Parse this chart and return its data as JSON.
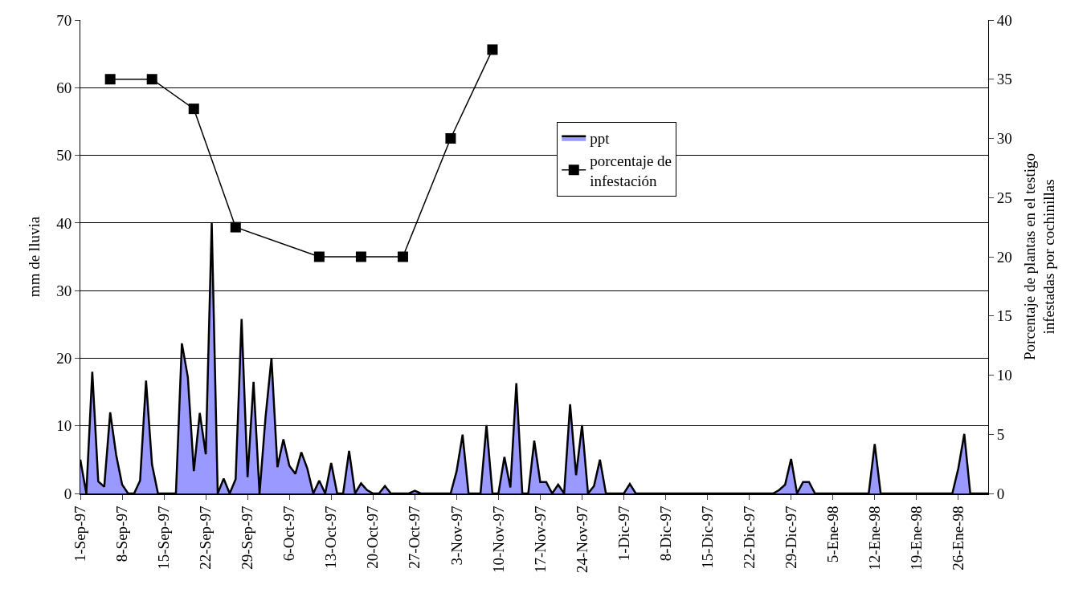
{
  "chart_data": {
    "type": "area",
    "ylabel": "mm de lluvia",
    "y2label": "Porcentaje de plantas en el testigo\ninfestadas por cochinillas",
    "xlim": [
      "1997-09-01",
      "1998-01-31"
    ],
    "xticks": [
      {
        "value": "1997-09-01",
        "label": "1-Sep-97"
      },
      {
        "value": "1997-09-08",
        "label": "8-Sep-97"
      },
      {
        "value": "1997-09-15",
        "label": "15-Sep-97"
      },
      {
        "value": "1997-09-22",
        "label": "22-Sep-97"
      },
      {
        "value": "1997-09-29",
        "label": "29-Sep-97"
      },
      {
        "value": "1997-10-06",
        "label": "6-Oct-97"
      },
      {
        "value": "1997-10-13",
        "label": "13-Oct-97"
      },
      {
        "value": "1997-10-20",
        "label": "20-Oct-97"
      },
      {
        "value": "1997-10-27",
        "label": "27-Oct-97"
      },
      {
        "value": "1997-11-03",
        "label": "3-Nov-97"
      },
      {
        "value": "1997-11-10",
        "label": "10-Nov-97"
      },
      {
        "value": "1997-11-17",
        "label": "17-Nov-97"
      },
      {
        "value": "1997-11-24",
        "label": "24-Nov-97"
      },
      {
        "value": "1997-12-01",
        "label": "1-Dic-97"
      },
      {
        "value": "1997-12-08",
        "label": "8-Dic-97"
      },
      {
        "value": "1997-12-15",
        "label": "15-Dic-97"
      },
      {
        "value": "1997-12-22",
        "label": "22-Dic-97"
      },
      {
        "value": "1997-12-29",
        "label": "29-Dic-97"
      },
      {
        "value": "1998-01-05",
        "label": "5-Ene-98"
      },
      {
        "value": "1998-01-12",
        "label": "12-Ene-98"
      },
      {
        "value": "1998-01-19",
        "label": "19-Ene-98"
      },
      {
        "value": "1998-01-26",
        "label": "26-Ene-98"
      }
    ],
    "ylim": [
      0,
      70
    ],
    "yticks": [
      0,
      10,
      20,
      30,
      40,
      50,
      60,
      70
    ],
    "y2lim": [
      0,
      40
    ],
    "y2ticks": [
      0,
      5,
      10,
      15,
      20,
      25,
      30,
      35,
      40
    ],
    "grid": "y",
    "legend": "top",
    "series": [
      {
        "name": "ppt",
        "color": "#9999ff",
        "x": [
          "1997-09-01",
          "1997-09-02",
          "1997-09-03",
          "1997-09-04",
          "1997-09-05",
          "1997-09-06",
          "1997-09-07",
          "1997-09-08",
          "1997-09-09",
          "1997-09-10",
          "1997-09-11",
          "1997-09-12",
          "1997-09-13",
          "1997-09-14",
          "1997-09-15",
          "1997-09-16",
          "1997-09-17",
          "1997-09-18",
          "1997-09-19",
          "1997-09-20",
          "1997-09-21",
          "1997-09-22",
          "1997-09-23",
          "1997-09-24",
          "1997-09-25",
          "1997-09-26",
          "1997-09-27",
          "1997-09-28",
          "1997-09-29",
          "1997-09-30",
          "1997-10-01",
          "1997-10-02",
          "1997-10-03",
          "1997-10-04",
          "1997-10-05",
          "1997-10-06",
          "1997-10-07",
          "1997-10-08",
          "1997-10-09",
          "1997-10-10",
          "1997-10-11",
          "1997-10-12",
          "1997-10-13",
          "1997-10-14",
          "1997-10-15",
          "1997-10-16",
          "1997-10-17",
          "1997-10-18",
          "1997-10-19",
          "1997-10-20",
          "1997-10-21",
          "1997-10-22",
          "1997-10-23",
          "1997-10-24",
          "1997-10-25",
          "1997-10-26",
          "1997-10-27",
          "1997-10-28",
          "1997-10-29",
          "1997-10-30",
          "1997-10-31",
          "1997-11-01",
          "1997-11-02",
          "1997-11-03",
          "1997-11-04",
          "1997-11-05",
          "1997-11-06",
          "1997-11-07",
          "1997-11-08",
          "1997-11-09",
          "1997-11-10",
          "1997-11-11",
          "1997-11-12",
          "1997-11-13",
          "1997-11-14",
          "1997-11-15",
          "1997-11-16",
          "1997-11-17",
          "1997-11-18",
          "1997-11-19",
          "1997-11-20",
          "1997-11-21",
          "1997-11-22",
          "1997-11-23",
          "1997-11-24",
          "1997-11-25",
          "1997-11-26",
          "1997-11-27",
          "1997-11-28",
          "1997-11-29",
          "1997-11-30",
          "1997-12-01",
          "1997-12-02",
          "1997-12-03",
          "1997-12-04",
          "1997-12-05",
          "1997-12-06",
          "1997-12-07",
          "1997-12-08",
          "1997-12-09",
          "1997-12-10",
          "1997-12-11",
          "1997-12-12",
          "1997-12-13",
          "1997-12-14",
          "1997-12-15",
          "1997-12-16",
          "1997-12-17",
          "1997-12-18",
          "1997-12-19",
          "1997-12-20",
          "1997-12-21",
          "1997-12-22",
          "1997-12-23",
          "1997-12-24",
          "1997-12-25",
          "1997-12-26",
          "1997-12-27",
          "1997-12-28",
          "1997-12-29",
          "1997-12-30",
          "1997-12-31",
          "1998-01-01",
          "1998-01-02",
          "1998-01-03",
          "1998-01-04",
          "1998-01-05",
          "1998-01-06",
          "1998-01-07",
          "1998-01-08",
          "1998-01-09",
          "1998-01-10",
          "1998-01-11",
          "1998-01-12",
          "1998-01-13",
          "1998-01-14",
          "1998-01-15",
          "1998-01-16",
          "1998-01-17",
          "1998-01-18",
          "1998-01-19",
          "1998-01-20",
          "1998-01-21",
          "1998-01-22",
          "1998-01-23",
          "1998-01-24",
          "1998-01-25",
          "1998-01-26",
          "1998-01-27",
          "1998-01-28",
          "1998-01-29",
          "1998-01-30",
          "1998-01-31"
        ],
        "values": [
          5,
          0,
          18,
          1.8,
          1,
          12,
          5.7,
          1.3,
          0,
          0,
          1.9,
          16.7,
          4.3,
          0,
          0,
          0,
          0,
          22.2,
          17.2,
          3.3,
          11.9,
          5.8,
          40,
          0,
          2.2,
          0,
          2.1,
          25.8,
          2.4,
          16.5,
          0,
          11.2,
          20,
          3.9,
          8,
          4.1,
          2.9,
          6.1,
          3.7,
          0,
          1.9,
          0,
          4.5,
          0,
          0,
          6.3,
          0,
          1.5,
          0.5,
          0,
          0,
          1.1,
          0,
          0,
          0,
          0,
          0.4,
          0,
          0,
          0,
          0,
          0,
          0,
          3.3,
          8.7,
          0,
          0,
          0,
          10.1,
          0,
          0,
          5.4,
          0.9,
          16.3,
          0,
          0,
          7.8,
          1.7,
          1.7,
          0,
          1.3,
          0,
          13.2,
          2.7,
          10.1,
          0,
          1.1,
          5,
          0,
          0,
          0,
          0,
          1.4,
          0,
          0,
          0,
          0,
          0,
          0,
          0,
          0,
          0,
          0,
          0,
          0,
          0,
          0,
          0,
          0,
          0,
          0,
          0,
          0,
          0,
          0,
          0,
          0,
          0.5,
          1.3,
          5.1,
          0,
          1.7,
          1.7,
          0,
          0,
          0,
          0,
          0,
          0,
          0,
          0,
          0,
          0,
          7.3,
          0,
          0,
          0,
          0,
          0,
          0,
          0,
          0,
          0,
          0,
          0,
          0,
          0,
          3.7,
          8.8,
          0,
          0,
          0,
          0
        ]
      },
      {
        "name": "porcentaje de\ninfestación",
        "type": "line",
        "axis": "y2",
        "color": "#000000",
        "marker": "square",
        "line_style": "solid",
        "x": [
          "1997-09-06",
          "1997-09-13",
          "1997-09-20",
          "1997-09-27",
          "1997-10-11",
          "1997-10-18",
          "1997-10-25",
          "1997-11-02",
          "1997-11-09"
        ],
        "values": [
          35,
          35,
          32.5,
          22.5,
          20,
          20,
          20,
          30,
          37.5
        ]
      }
    ]
  }
}
